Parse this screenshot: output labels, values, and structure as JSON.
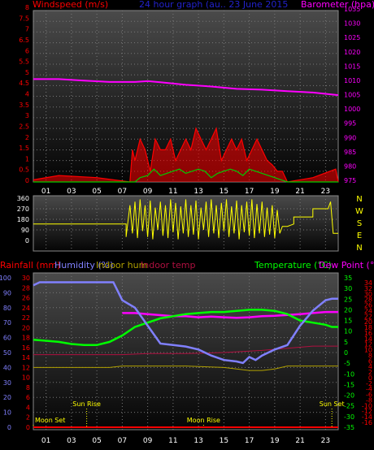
{
  "colors": {
    "background": "#000000",
    "windspeed": "#ff0000",
    "barometer": "#ff00ff",
    "title": "#2222cc",
    "gust": "#ff0000",
    "average": "#00cc00",
    "wind_direction": "#ffff00",
    "rainfall": "#ff0000",
    "humidity": "#8080ff",
    "indoor_hum": "#b0a000",
    "indoor_temp": "#b01040",
    "temperature": "#00ff00",
    "dew_point": "#ff00ff",
    "moon": "#ffff00",
    "axis_text": "#ffffff"
  },
  "chart_data": [
    {
      "type": "line",
      "title": "24 hour graph (au.. 23 June 2015",
      "left_axis_label": "Windspeed (m/s)",
      "right_axis_label": "Barometer (hpa)",
      "left_ticks": [
        "0",
        "0.5",
        "1",
        "1.5",
        "2",
        "2.5",
        "3",
        "3.5",
        "4",
        "4.5",
        "5",
        "5.5",
        "6",
        "6.5",
        "7",
        "7.5",
        "8"
      ],
      "right_ticks": [
        "975",
        "980",
        "985",
        "990",
        "995",
        "1000",
        "1005",
        "1010",
        "1015",
        "1020",
        "1025",
        "1030",
        "1035"
      ],
      "x_ticks": [
        "01",
        "03",
        "05",
        "07",
        "09",
        "11",
        "13",
        "15",
        "17",
        "19",
        "21",
        "23"
      ],
      "xlim": [
        0,
        24
      ],
      "ylim_left": [
        0,
        8
      ],
      "ylim_right": [
        975,
        1035
      ],
      "barometer": {
        "x": [
          0,
          2,
          4,
          6,
          8,
          9,
          10,
          12,
          14,
          16,
          18,
          20,
          22,
          24
        ],
        "y": [
          1011,
          1011,
          1010.5,
          1010,
          1010,
          1010.3,
          1009.9,
          1009,
          1008.4,
          1007.6,
          1007.3,
          1006.8,
          1006.3,
          1005.4
        ]
      },
      "gust": {
        "x": [
          0,
          2,
          5,
          7.6,
          7.8,
          8,
          8.4,
          8.8,
          9.2,
          9.6,
          10,
          10.4,
          10.8,
          11.2,
          11.6,
          12,
          12.4,
          12.8,
          13.2,
          13.6,
          14,
          14.4,
          14.8,
          15.2,
          15.6,
          16,
          16.4,
          16.8,
          17.2,
          17.6,
          18,
          18.4,
          18.8,
          19.2,
          19.6,
          20,
          22,
          23.8,
          24
        ],
        "y": [
          0.1,
          0.3,
          0.2,
          0,
          1.5,
          1,
          2,
          1.5,
          0.5,
          2,
          1.5,
          1.5,
          2,
          1,
          1.5,
          2,
          1.5,
          2.5,
          2,
          1.5,
          2,
          2.5,
          1,
          1.5,
          2,
          1.5,
          2,
          1,
          1.5,
          2,
          1.5,
          1,
          0.8,
          0.5,
          0.5,
          0,
          0.2,
          0.6,
          0
        ]
      },
      "average": {
        "x": [
          0,
          8,
          8.4,
          9,
          9.5,
          10,
          10.5,
          11,
          11.5,
          12,
          12.5,
          13,
          13.5,
          14,
          14.5,
          15,
          15.5,
          16,
          16.5,
          17,
          17.5,
          18,
          18.5,
          19,
          19.5,
          20,
          24
        ],
        "y": [
          0,
          0,
          0.2,
          0.3,
          0.6,
          0.3,
          0.4,
          0.5,
          0.6,
          0.4,
          0.5,
          0.6,
          0.5,
          0.2,
          0.4,
          0.5,
          0.6,
          0.5,
          0.3,
          0.6,
          0.5,
          0.4,
          0.3,
          0.2,
          0.1,
          0,
          0
        ]
      }
    },
    {
      "type": "scatter",
      "ylabel_ticks": [
        "0",
        "90",
        "180",
        "270",
        "360"
      ],
      "compass_labels": [
        "N",
        "W",
        "S",
        "E",
        "N"
      ],
      "ylim": [
        0,
        360
      ],
      "xlim": [
        0,
        24
      ],
      "x": [
        0,
        7.3,
        7.3,
        7.6,
        7.8,
        8,
        8.2,
        8.4,
        8.6,
        8.8,
        9,
        9.2,
        9.4,
        9.6,
        9.8,
        10,
        10.2,
        10.4,
        10.6,
        10.8,
        11,
        11.2,
        11.4,
        11.6,
        11.8,
        12,
        12.2,
        12.4,
        12.6,
        12.8,
        13,
        13.2,
        13.4,
        13.6,
        13.8,
        14,
        14.2,
        14.4,
        14.6,
        14.8,
        15,
        15.2,
        15.4,
        15.6,
        15.8,
        16,
        16.2,
        16.4,
        16.6,
        16.8,
        17,
        17.2,
        17.4,
        17.6,
        17.8,
        18,
        18.2,
        18.4,
        18.6,
        18.8,
        19,
        19.2,
        19.4,
        19.6,
        20,
        20.5,
        20.5,
        21,
        22,
        22,
        23.2,
        23.4,
        23.6,
        24
      ],
      "y": [
        140,
        140,
        30,
        300,
        60,
        330,
        20,
        350,
        80,
        300,
        30,
        340,
        10,
        280,
        90,
        330,
        40,
        300,
        20,
        350,
        70,
        320,
        10,
        290,
        60,
        350,
        30,
        300,
        50,
        340,
        10,
        280,
        90,
        330,
        30,
        350,
        60,
        300,
        20,
        320,
        80,
        350,
        30,
        290,
        60,
        340,
        10,
        300,
        70,
        330,
        40,
        350,
        20,
        310,
        60,
        330,
        30,
        280,
        50,
        300,
        20,
        260,
        60,
        120,
        120,
        140,
        200,
        200,
        200,
        270,
        270,
        330,
        60,
        60
      ]
    },
    {
      "type": "line",
      "left_axis_labels": [
        "Rainfall (mm)",
        "Humidity (%)",
        "Indoor hum",
        "Indoor temp"
      ],
      "right_axis_labels": [
        "Temperature (°C)",
        "Dew Point (°C)"
      ],
      "humidity_ticks": [
        "0",
        "10",
        "20",
        "30",
        "40",
        "50",
        "60",
        "70",
        "80",
        "90",
        "100"
      ],
      "rainfall_ticks": [
        "0",
        "2",
        "4",
        "6",
        "8",
        "10",
        "12",
        "14",
        "16",
        "18",
        "20",
        "22",
        "24",
        "26",
        "28",
        "30"
      ],
      "temperature_ticks": [
        "-35",
        "-30",
        "-25",
        "-20",
        "-15",
        "-10",
        "-5",
        "0",
        "5",
        "10",
        "15",
        "20",
        "25",
        "30",
        "35"
      ],
      "dewpoint_ticks": [
        "-16",
        "-14",
        "-12",
        "-10",
        "-8",
        "-6",
        "-4",
        "-2",
        "0",
        "2",
        "4",
        "6",
        "8",
        "10",
        "12",
        "14",
        "16",
        "18",
        "20",
        "22",
        "24",
        "26",
        "28",
        "30",
        "32",
        "34"
      ],
      "x_ticks": [
        "01",
        "03",
        "05",
        "07",
        "09",
        "11",
        "13",
        "15",
        "17",
        "19",
        "21",
        "23"
      ],
      "xlim": [
        0,
        24
      ],
      "ylim_humidity": [
        0,
        100
      ],
      "ylim_temperature": [
        -35,
        35
      ],
      "humidity": {
        "x": [
          0,
          0.5,
          3,
          6.3,
          7,
          8,
          8.5,
          9,
          9.5,
          10,
          11,
          12,
          13,
          14,
          15,
          16,
          16.5,
          17,
          17.5,
          18,
          19,
          20,
          21,
          22,
          23,
          23.5,
          24
        ],
        "y": [
          95,
          97,
          97,
          97,
          85,
          80,
          74,
          68,
          62,
          56,
          55,
          54,
          52,
          48,
          45,
          44,
          43,
          47,
          45,
          48,
          52,
          55,
          68,
          78,
          85,
          86,
          86
        ]
      },
      "temperature": {
        "x": [
          0,
          1,
          2,
          3,
          4,
          5,
          6,
          7,
          8,
          9,
          10,
          11,
          12,
          13,
          14,
          15,
          16,
          17,
          18,
          19,
          20,
          21,
          22,
          23,
          23.5,
          24
        ],
        "y": [
          6,
          5.5,
          5,
          4,
          3.5,
          3.5,
          5,
          8,
          12,
          14,
          16,
          17,
          18,
          18.5,
          19,
          19,
          19.5,
          20,
          20,
          19.5,
          18,
          15,
          14,
          13,
          12,
          12
        ]
      },
      "dew_point": {
        "x": [
          7,
          8,
          9,
          10,
          11,
          12,
          13,
          14,
          15,
          16,
          17,
          18,
          19,
          20,
          21,
          22,
          23,
          24
        ],
        "y": [
          18.5,
          18.5,
          18,
          17.5,
          17,
          17,
          16.5,
          16.8,
          16.5,
          16.3,
          16.5,
          17,
          17.2,
          17.6,
          18,
          18.5,
          19,
          19
        ]
      },
      "indoor_hum": {
        "x": [
          0,
          6,
          7,
          12,
          15,
          17,
          18,
          19,
          20,
          24
        ],
        "y": [
          40,
          40,
          41,
          41,
          40,
          38,
          38,
          39,
          41,
          41
        ]
      },
      "indoor_temp": {
        "x": [
          0,
          6,
          7,
          9,
          12,
          15,
          18,
          20,
          22,
          24
        ],
        "y": [
          -1,
          -1,
          -1,
          -0.5,
          -0.5,
          0,
          1,
          2,
          3,
          3
        ]
      },
      "rainfall": {
        "x": [
          0,
          24
        ],
        "y": [
          0,
          0
        ]
      },
      "annotations": {
        "moon_set": "Moon Set",
        "sun_rise": "Sun Rise",
        "moon_rise": "Moon Rise",
        "sun_set": "Sun Set"
      },
      "annotation_times": {
        "moon_set": 0,
        "sun_rise": 4.2,
        "moon_rise": 13.4,
        "sun_set": 23.5
      }
    }
  ]
}
